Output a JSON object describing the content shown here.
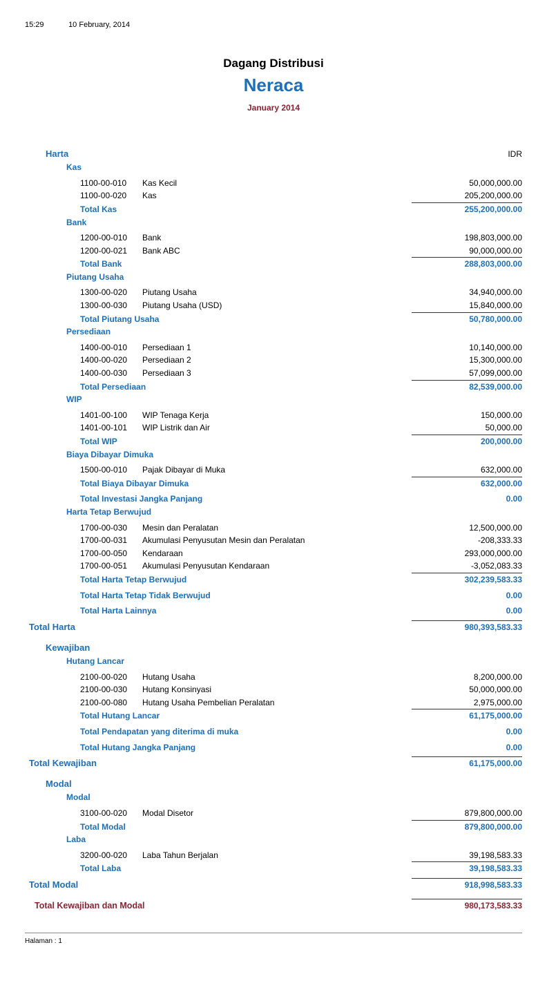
{
  "meta": {
    "time": "15:29",
    "date": "10 February, 2014",
    "company": "Dagang Distribusi",
    "report_title": "Neraca",
    "period": "January 2014",
    "currency": "IDR",
    "footer": "Halaman : 1"
  },
  "harta": {
    "title": "Harta",
    "kas": {
      "title": "Kas",
      "items": [
        {
          "code": "1100-00-010",
          "name": "Kas Kecil",
          "amount": "50,000,000.00"
        },
        {
          "code": "1100-00-020",
          "name": "Kas",
          "amount": "205,200,000.00"
        }
      ],
      "total_label": "Total Kas",
      "total": "255,200,000.00"
    },
    "bank": {
      "title": "Bank",
      "items": [
        {
          "code": "1200-00-010",
          "name": "Bank",
          "amount": "198,803,000.00"
        },
        {
          "code": "1200-00-021",
          "name": "Bank ABC",
          "amount": "90,000,000.00"
        }
      ],
      "total_label": "Total Bank",
      "total": "288,803,000.00"
    },
    "piutang": {
      "title": "Piutang Usaha",
      "items": [
        {
          "code": "1300-00-020",
          "name": "Piutang Usaha",
          "amount": "34,940,000.00"
        },
        {
          "code": "1300-00-030",
          "name": "Piutang Usaha (USD)",
          "amount": "15,840,000.00"
        }
      ],
      "total_label": "Total Piutang Usaha",
      "total": "50,780,000.00"
    },
    "persediaan": {
      "title": "Persediaan",
      "items": [
        {
          "code": "1400-00-010",
          "name": "Persediaan 1",
          "amount": "10,140,000.00"
        },
        {
          "code": "1400-00-020",
          "name": "Persediaan 2",
          "amount": "15,300,000.00"
        },
        {
          "code": "1400-00-030",
          "name": "Persediaan 3",
          "amount": "57,099,000.00"
        }
      ],
      "total_label": "Total Persediaan",
      "total": "82,539,000.00"
    },
    "wip": {
      "title": "WIP",
      "items": [
        {
          "code": "1401-00-100",
          "name": "WIP Tenaga Kerja",
          "amount": "150,000.00"
        },
        {
          "code": "1401-00-101",
          "name": "WIP Listrik dan Air",
          "amount": "50,000.00"
        }
      ],
      "total_label": "Total WIP",
      "total": "200,000.00"
    },
    "bdm": {
      "title": "Biaya Dibayar Dimuka",
      "items": [
        {
          "code": "1500-00-010",
          "name": "Pajak Dibayar di Muka",
          "amount": "632,000.00"
        }
      ],
      "total_label": "Total Biaya Dibayar Dimuka",
      "total": "632,000.00"
    },
    "investasi": {
      "total_label": "Total Investasi Jangka Panjang",
      "total": "0.00"
    },
    "htb": {
      "title": "Harta Tetap Berwujud",
      "items": [
        {
          "code": "1700-00-030",
          "name": "Mesin dan Peralatan",
          "amount": "12,500,000.00"
        },
        {
          "code": "1700-00-031",
          "name": "Akumulasi Penyusutan Mesin dan Peralatan",
          "amount": "-208,333.33"
        },
        {
          "code": "1700-00-050",
          "name": "Kendaraan",
          "amount": "293,000,000.00"
        },
        {
          "code": "1700-00-051",
          "name": "Akumulasi Penyusutan Kendaraan",
          "amount": "-3,052,083.33"
        }
      ],
      "total_label": "Total Harta Tetap Berwujud",
      "total": "302,239,583.33"
    },
    "httb": {
      "total_label": "Total Harta Tetap Tidak Berwujud",
      "total": "0.00"
    },
    "hl": {
      "total_label": "Total Harta Lainnya",
      "total": "0.00"
    },
    "total_label": "Total Harta",
    "total": "980,393,583.33"
  },
  "kewajiban": {
    "title": "Kewajiban",
    "hutang_lancar": {
      "title": "Hutang Lancar",
      "items": [
        {
          "code": "2100-00-020",
          "name": "Hutang Usaha",
          "amount": "8,200,000.00"
        },
        {
          "code": "2100-00-030",
          "name": "Hutang Konsinyasi",
          "amount": "50,000,000.00"
        },
        {
          "code": "2100-00-080",
          "name": "Hutang Usaha Pembelian Peralatan",
          "amount": "2,975,000.00"
        }
      ],
      "total_label": "Total Hutang Lancar",
      "total": "61,175,000.00"
    },
    "pdm": {
      "total_label": "Total Pendapatan yang diterima di muka",
      "total": "0.00"
    },
    "hjp": {
      "total_label": "Total Hutang Jangka Panjang",
      "total": "0.00"
    },
    "total_label": "Total Kewajiban",
    "total": "61,175,000.00"
  },
  "modal": {
    "title": "Modal",
    "modal_sub": {
      "title": "Modal",
      "items": [
        {
          "code": "3100-00-020",
          "name": "Modal Disetor",
          "amount": "879,800,000.00"
        }
      ],
      "total_label": "Total Modal",
      "total": "879,800,000.00"
    },
    "laba": {
      "title": "Laba",
      "items": [
        {
          "code": "3200-00-020",
          "name": "Laba Tahun Berjalan",
          "amount": "39,198,583.33"
        }
      ],
      "total_label": "Total Laba",
      "total": "39,198,583.33"
    },
    "total_label": "Total Modal",
    "total": "918,998,583.33"
  },
  "grand": {
    "label": "Total Kewajiban dan Modal",
    "total": "980,173,583.33"
  }
}
